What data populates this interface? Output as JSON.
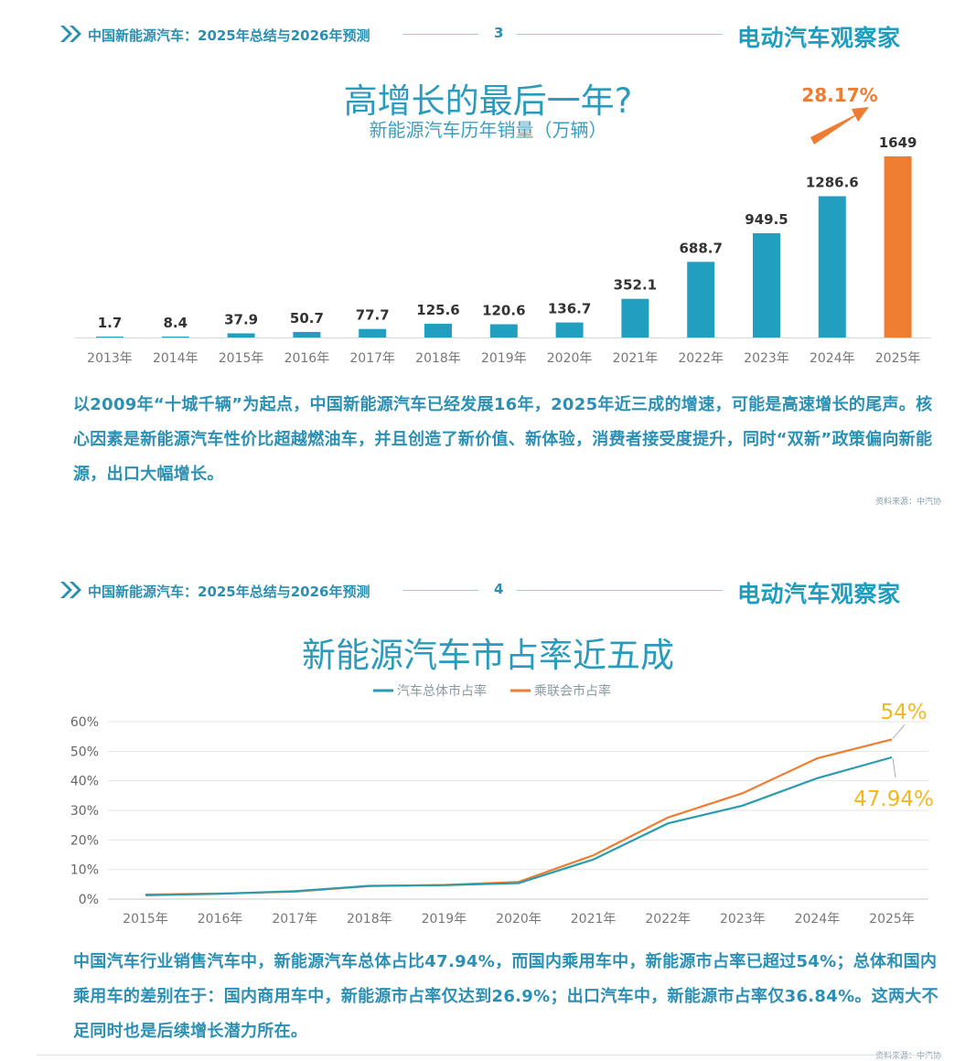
{
  "slide1": {
    "header": {
      "title": "中国新能源汽车：2025年总结与2026年预测",
      "page_number": "3",
      "brand": "电动汽车观察家"
    },
    "title": "高增长的最后一年?",
    "chart_data": {
      "type": "bar",
      "subtitle": "新能源汽车历年销量（万辆）",
      "categories": [
        "2013年",
        "2014年",
        "2015年",
        "2016年",
        "2017年",
        "2018年",
        "2019年",
        "2020年",
        "2021年",
        "2022年",
        "2023年",
        "2024年",
        "2025年"
      ],
      "values": [
        1.7,
        8.4,
        37.9,
        50.7,
        77.7,
        125.6,
        120.6,
        136.7,
        352.1,
        688.7,
        949.5,
        1286.6,
        1649
      ],
      "data_labels": [
        "1.7",
        "8.4",
        "37.9",
        "50.7",
        "77.7",
        "125.6",
        "120.6",
        "136.7",
        "352.1",
        "688.7",
        "949.5",
        "1286.6",
        "1649"
      ],
      "highlight_index": 12,
      "annotation": "28.17%",
      "bar_color": "#229fbf",
      "highlight_color": "#ee7d31",
      "ylim": [
        0,
        1649
      ]
    },
    "paragraph": "以2009年“十城千辆”为起点，中国新能源汽车已经发展16年，2025年近三成的增速，可能是高速增长的尾声。核心因素是新能源汽车性价比超越燃油车，并且创造了新价值、新体验，消费者接受度提升，同时“双新”政策偏向新能源，出口大幅增长。",
    "source": "资料来源：中汽协"
  },
  "slide2": {
    "header": {
      "title": "中国新能源汽车：2025年总结与2026年预测",
      "page_number": "4",
      "brand": "电动汽车观察家"
    },
    "title": "新能源汽车市占率近五成",
    "chart_data": {
      "type": "line",
      "categories": [
        "2015年",
        "2016年",
        "2017年",
        "2018年",
        "2019年",
        "2020年",
        "2021年",
        "2022年",
        "2023年",
        "2024年",
        "2025年"
      ],
      "series": [
        {
          "name": "汽车总体市占率",
          "color": "#2a9cb0",
          "values": [
            1.3,
            1.8,
            2.7,
            4.5,
            4.7,
            5.4,
            13.4,
            25.6,
            31.6,
            40.9,
            47.94
          ]
        },
        {
          "name": "乘联会市占率",
          "color": "#ee7d31",
          "values": [
            1.5,
            1.9,
            2.5,
            4.4,
            4.8,
            5.8,
            14.8,
            27.6,
            35.8,
            47.6,
            54
          ]
        }
      ],
      "yticks": [
        "0%",
        "10%",
        "20%",
        "30%",
        "40%",
        "50%",
        "60%"
      ],
      "ylim": [
        0,
        60
      ],
      "annotations": [
        "54%",
        "47.94%"
      ],
      "annotation_color": "#f2b820",
      "grid": true,
      "legend_position": "top-center"
    },
    "paragraph": "中国汽车行业销售汽车中，新能源汽车总体占比47.94%，而国内乘用车中，新能源市占率已超过54%；总体和国内乘用车的差别在于：国内商用车中，新能源市占率仅达到26.9%；出口汽车中，新能源市占率仅36.84%。这两大不足同时也是后续增长潜力所在。",
    "source": "资料来源：中汽协"
  }
}
